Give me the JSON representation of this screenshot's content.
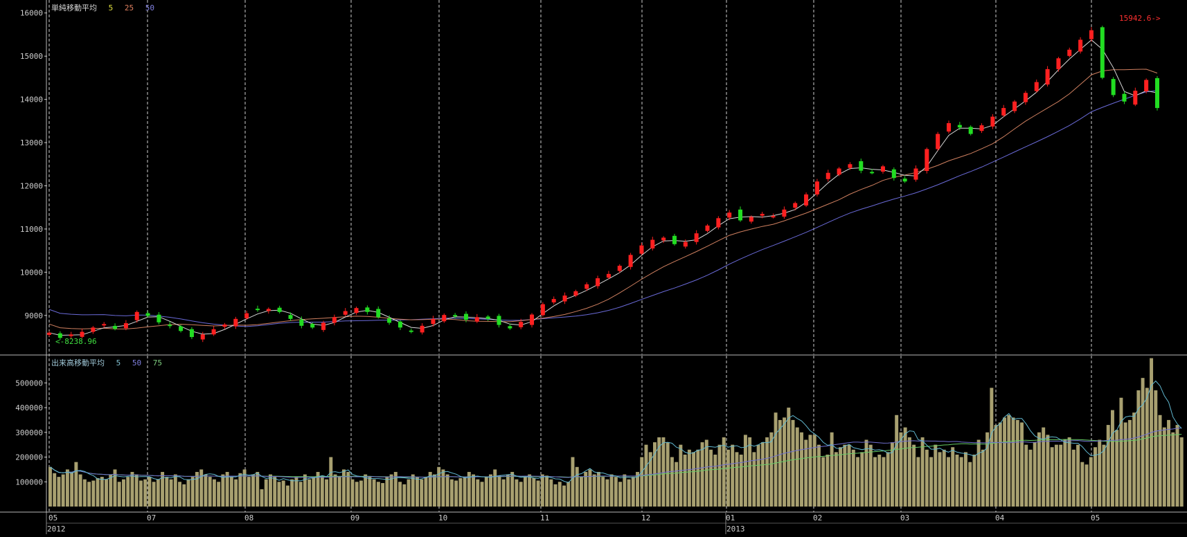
{
  "colors": {
    "background": "#000000",
    "frame": "#b8b8b8",
    "candle_up": "#ff2020",
    "candle_down": "#22dd22",
    "ma_short": "#d8d8d8",
    "ma_mid": "#d08060",
    "ma_long": "#6a6ad8",
    "volume_bar": "#a8a070",
    "vol_ma_short": "#60b8d0",
    "vol_ma_mid": "#7070d0",
    "vol_ma_long": "#66cc66"
  },
  "price_panel": {
    "title": "単純移動平均",
    "periods": [
      "5",
      "25",
      "50"
    ],
    "period_colors": [
      "#e0e040",
      "#e08060",
      "#8080e0"
    ],
    "high_marker": "15942.6->",
    "low_marker": "<-8238.96",
    "y_ticks": [
      "9000",
      "10000",
      "11000",
      "12000",
      "13000",
      "14000",
      "15000",
      "16000"
    ]
  },
  "volume_panel": {
    "title": "出来高移動平均",
    "periods": [
      "5",
      "50",
      "75"
    ],
    "period_colors": [
      "#80c0d0",
      "#8080e0",
      "#80d080"
    ],
    "y_ticks": [
      "100000",
      "200000",
      "300000",
      "400000",
      "500000"
    ]
  },
  "x_axis": {
    "month_labels": [
      "05",
      "07",
      "08",
      "09",
      "10",
      "11",
      "12",
      "01",
      "02",
      "03",
      "04",
      "05"
    ],
    "year_labels": [
      "2012",
      "2013"
    ]
  },
  "chart_data": [
    {
      "type": "candlestick",
      "title": "単純移動平均",
      "moving_average_periods": [
        5,
        25,
        50
      ],
      "x_range": [
        "2012-05",
        "2013-05"
      ],
      "ylim": [
        8100,
        16300
      ],
      "y_ticks": [
        9000,
        10000,
        11000,
        12000,
        13000,
        14000,
        15000,
        16000
      ],
      "annotations": [
        {
          "text": "15942.6->",
          "value": 15942.6
        },
        {
          "text": "<-8238.96",
          "value": 8238.96
        }
      ],
      "close_series": [
        8600,
        8480,
        8560,
        8620,
        8720,
        8800,
        8690,
        8820,
        9080,
        8990,
        8840,
        8760,
        8640,
        8500,
        8560,
        8680,
        8790,
        8920,
        9050,
        9130,
        9150,
        9080,
        8920,
        8760,
        8720,
        8830,
        8960,
        9100,
        9170,
        9080,
        8960,
        8830,
        8720,
        8620,
        8760,
        8920,
        9010,
        8980,
        8900,
        8960,
        8920,
        8780,
        8700,
        8850,
        9020,
        9260,
        9380,
        9460,
        9560,
        9720,
        9860,
        9960,
        10150,
        10400,
        10620,
        10750,
        10800,
        10650,
        10700,
        10900,
        11080,
        11250,
        11380,
        11200,
        11280,
        11350,
        11300,
        11450,
        11600,
        11800,
        12100,
        12300,
        12400,
        12500,
        12350,
        12300,
        12450,
        12180,
        12100,
        12400,
        12850,
        13200,
        13450,
        13350,
        13200,
        13400,
        13600,
        13800,
        13950,
        14150,
        14400,
        14700,
        14950,
        15150,
        15380,
        15600,
        14500,
        14100,
        13950,
        14200,
        14450,
        13800
      ]
    },
    {
      "type": "bar",
      "title": "出来高移動平均",
      "moving_average_periods": [
        5,
        50,
        75
      ],
      "ylim": [
        0,
        610000
      ],
      "y_ticks": [
        100000,
        200000,
        300000,
        400000,
        500000
      ],
      "values": [
        160000,
        135000,
        120000,
        130000,
        150000,
        140000,
        180000,
        130000,
        110000,
        100000,
        105000,
        115000,
        120000,
        110000,
        130000,
        150000,
        100000,
        110000,
        120000,
        140000,
        130000,
        105000,
        110000,
        120000,
        100000,
        110000,
        140000,
        120000,
        110000,
        130000,
        100000,
        90000,
        110000,
        120000,
        140000,
        150000,
        130000,
        120000,
        110000,
        100000,
        130000,
        140000,
        120000,
        110000,
        135000,
        150000,
        120000,
        130000,
        140000,
        70000,
        110000,
        130000,
        120000,
        100000,
        105000,
        85000,
        110000,
        120000,
        100000,
        130000,
        110000,
        120000,
        140000,
        125000,
        110000,
        200000,
        130000,
        120000,
        150000,
        140000,
        110000,
        100000,
        105000,
        130000,
        120000,
        110000,
        100000,
        95000,
        120000,
        130000,
        140000,
        100000,
        90000,
        110000,
        130000,
        120000,
        110000,
        120000,
        140000,
        130000,
        160000,
        150000,
        130000,
        110000,
        105000,
        115000,
        120000,
        140000,
        130000,
        110000,
        100000,
        120000,
        130000,
        150000,
        125000,
        110000,
        130000,
        140000,
        110000,
        100000,
        120000,
        130000,
        115000,
        105000,
        130000,
        125000,
        110000,
        90000,
        100000,
        85000,
        100000,
        200000,
        160000,
        120000,
        140000,
        150000,
        130000,
        140000,
        120000,
        110000,
        130000,
        120000,
        100000,
        130000,
        110000,
        120000,
        140000,
        200000,
        250000,
        220000,
        260000,
        280000,
        280000,
        260000,
        200000,
        180000,
        250000,
        210000,
        230000,
        220000,
        230000,
        260000,
        270000,
        230000,
        210000,
        250000,
        280000,
        230000,
        250000,
        220000,
        210000,
        290000,
        280000,
        220000,
        250000,
        260000,
        280000,
        300000,
        380000,
        350000,
        360000,
        400000,
        350000,
        320000,
        300000,
        270000,
        290000,
        290000,
        250000,
        200000,
        210000,
        300000,
        220000,
        240000,
        250000,
        250000,
        230000,
        200000,
        220000,
        270000,
        250000,
        200000,
        210000,
        200000,
        220000,
        260000,
        370000,
        300000,
        320000,
        280000,
        250000,
        200000,
        280000,
        230000,
        200000,
        250000,
        220000,
        230000,
        200000,
        240000,
        210000,
        200000,
        220000,
        180000,
        210000,
        270000,
        230000,
        300000,
        480000,
        330000,
        340000,
        360000,
        370000,
        360000,
        350000,
        340000,
        250000,
        230000,
        260000,
        300000,
        320000,
        290000,
        240000,
        250000,
        250000,
        270000,
        280000,
        230000,
        250000,
        180000,
        170000,
        200000,
        240000,
        270000,
        250000,
        330000,
        390000,
        310000,
        440000,
        340000,
        350000,
        380000,
        470000,
        520000,
        480000,
        600000,
        470000,
        370000,
        320000,
        350000,
        300000,
        330000,
        280000
      ]
    }
  ]
}
